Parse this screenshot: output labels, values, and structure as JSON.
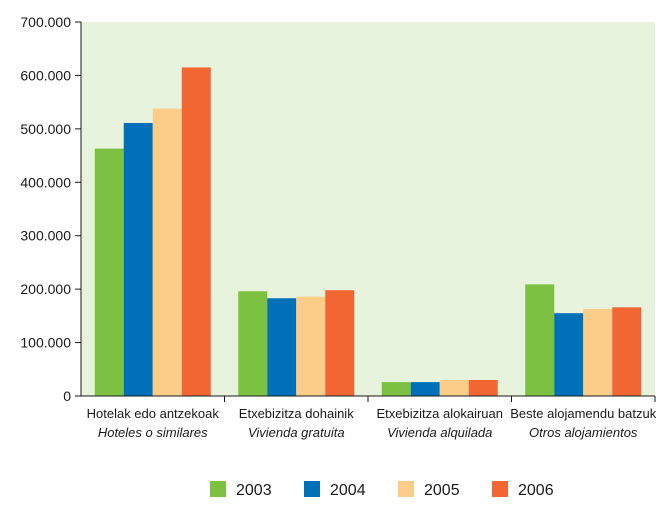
{
  "chart_data": {
    "type": "bar",
    "categories": [
      {
        "line1": "Hotelak edo antzekoak",
        "line2": "Hoteles o similares"
      },
      {
        "line1": "Etxebizitza dohainik",
        "line2": "Vivienda gratuita"
      },
      {
        "line1": "Etxebizitza alokairuan",
        "line2": "Vivienda alquilada"
      },
      {
        "line1": "Beste alojamendu batzuk",
        "line2": "Otros alojamientos"
      }
    ],
    "series": [
      {
        "name": "2003",
        "color": "#7dc142",
        "values": [
          463000,
          196000,
          26000,
          209000
        ]
      },
      {
        "name": "2004",
        "color": "#0070b8",
        "values": [
          511000,
          183000,
          26000,
          155000
        ]
      },
      {
        "name": "2005",
        "color": "#fccd88",
        "values": [
          538000,
          186000,
          30000,
          163000
        ]
      },
      {
        "name": "2006",
        "color": "#f26634",
        "values": [
          615000,
          198000,
          30000,
          166000
        ]
      }
    ],
    "ylim": [
      0,
      700000
    ],
    "yticks": [
      "0",
      "100.000",
      "200.000",
      "300.000",
      "400.000",
      "500.000",
      "600.000",
      "700.000"
    ],
    "grid": false,
    "legend_position": "bottom",
    "plot_background": "#e8f3dd"
  }
}
